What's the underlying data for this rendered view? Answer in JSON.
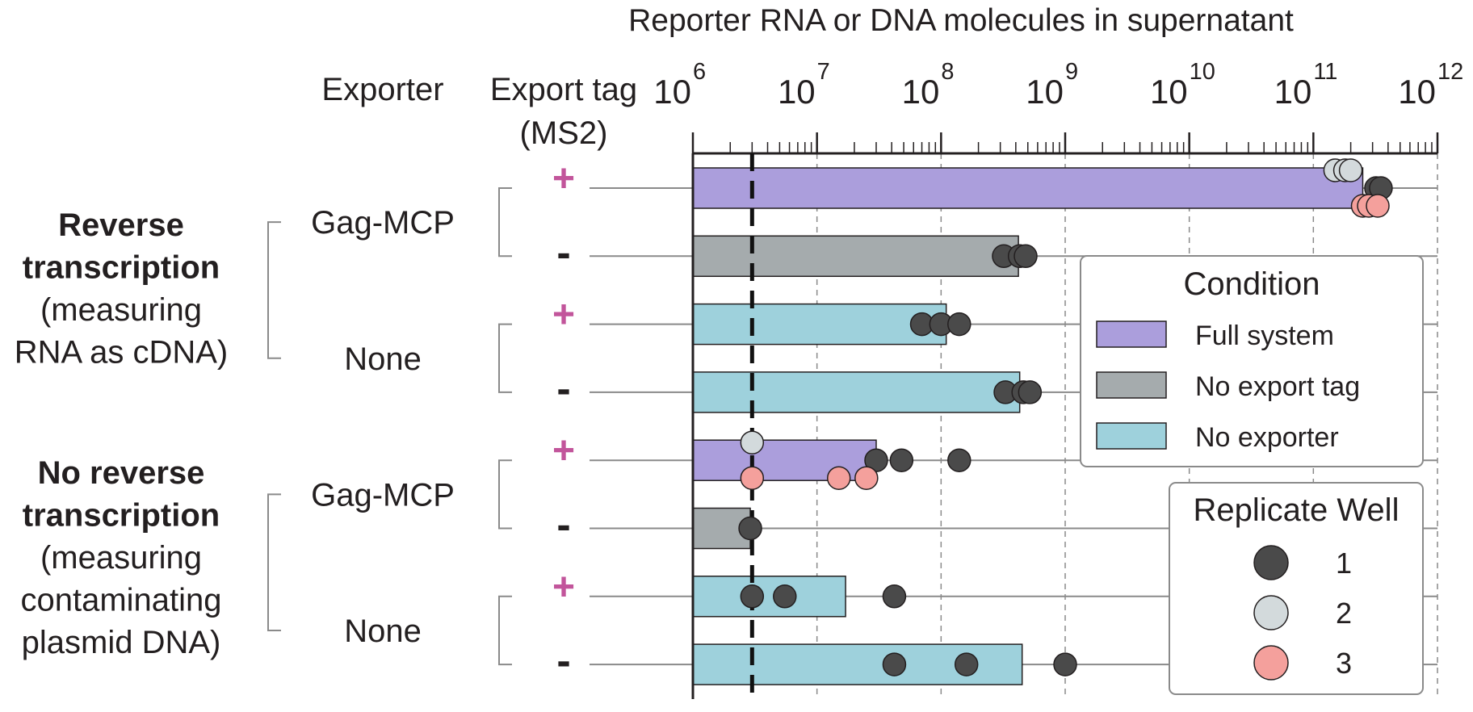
{
  "chart_data": {
    "type": "bar",
    "xscale": "log",
    "xlim": [
      1000000,
      1000000000000
    ],
    "xlabel": "Reporter RNA or DNA molecules in supernatant",
    "x_tick_labels": [
      {
        "base": "10",
        "exp": "6"
      },
      {
        "base": "10",
        "exp": "7"
      },
      {
        "base": "10",
        "exp": "8"
      },
      {
        "base": "10",
        "exp": "9"
      },
      {
        "base": "10",
        "exp": "10"
      },
      {
        "base": "10",
        "exp": "11"
      },
      {
        "base": "10",
        "exp": "12"
      }
    ],
    "detection_limit": 3000000,
    "column_headers": {
      "exporter": "Exporter",
      "export_tag": [
        "Export tag",
        "(MS2)"
      ]
    },
    "groups": [
      {
        "lines": [
          {
            "text": "Reverse",
            "bold": true
          },
          {
            "text": "transcription",
            "bold": true
          },
          {
            "text": "(measuring",
            "bold": false
          },
          {
            "text": "RNA as cDNA)",
            "bold": false
          }
        ]
      },
      {
        "lines": [
          {
            "text": "No reverse",
            "bold": true
          },
          {
            "text": "transcription",
            "bold": true
          },
          {
            "text": "(measuring",
            "bold": false
          },
          {
            "text": "contaminating",
            "bold": false
          },
          {
            "text": "plasmid DNA)",
            "bold": false
          }
        ]
      }
    ],
    "exporters": [
      "Gag-MCP",
      "None",
      "Gag-MCP",
      "None"
    ],
    "tag_symbols": {
      "plus": "+",
      "minus": "-"
    },
    "rows": [
      {
        "group": 0,
        "exporter": 0,
        "tag": "plus",
        "condition": "Full system",
        "value": 250000000000,
        "points": [
          {
            "rep": 2,
            "value": 150000000000
          },
          {
            "rep": 2,
            "value": 180000000000
          },
          {
            "rep": 2,
            "value": 200000000000
          },
          {
            "rep": 1,
            "value": 320000000000
          },
          {
            "rep": 1,
            "value": 350000000000
          },
          {
            "rep": 3,
            "value": 250000000000
          },
          {
            "rep": 3,
            "value": 280000000000
          },
          {
            "rep": 3,
            "value": 330000000000
          }
        ]
      },
      {
        "group": 0,
        "exporter": 0,
        "tag": "minus",
        "condition": "No export tag",
        "value": 420000000,
        "points": [
          {
            "rep": 1,
            "value": 320000000
          },
          {
            "rep": 1,
            "value": 430000000
          },
          {
            "rep": 1,
            "value": 480000000
          }
        ]
      },
      {
        "group": 0,
        "exporter": 1,
        "tag": "plus",
        "condition": "No exporter",
        "value": 110000000,
        "points": [
          {
            "rep": 1,
            "value": 70000000
          },
          {
            "rep": 1,
            "value": 100000000
          },
          {
            "rep": 1,
            "value": 140000000
          }
        ]
      },
      {
        "group": 0,
        "exporter": 1,
        "tag": "minus",
        "condition": "No exporter",
        "value": 430000000,
        "points": [
          {
            "rep": 1,
            "value": 330000000
          },
          {
            "rep": 1,
            "value": 460000000
          },
          {
            "rep": 1,
            "value": 520000000
          }
        ]
      },
      {
        "group": 1,
        "exporter": 2,
        "tag": "plus",
        "condition": "Full system",
        "value": 30000000,
        "points": [
          {
            "rep": 2,
            "value": 3000000
          },
          {
            "rep": 1,
            "value": 30000000
          },
          {
            "rep": 1,
            "value": 48000000
          },
          {
            "rep": 1,
            "value": 140000000
          },
          {
            "rep": 3,
            "value": 3000000
          },
          {
            "rep": 3,
            "value": 15000000
          },
          {
            "rep": 3,
            "value": 25000000
          }
        ]
      },
      {
        "group": 1,
        "exporter": 2,
        "tag": "minus",
        "condition": "No export tag",
        "value": 2900000,
        "points": [
          {
            "rep": 1,
            "value": 2900000
          }
        ]
      },
      {
        "group": 1,
        "exporter": 3,
        "tag": "plus",
        "condition": "No exporter",
        "value": 17000000,
        "points": [
          {
            "rep": 1,
            "value": 3000000
          },
          {
            "rep": 1,
            "value": 5500000
          },
          {
            "rep": 1,
            "value": 42000000
          }
        ]
      },
      {
        "group": 1,
        "exporter": 3,
        "tag": "minus",
        "condition": "No exporter",
        "value": 450000000,
        "points": [
          {
            "rep": 1,
            "value": 42000000
          },
          {
            "rep": 1,
            "value": 160000000
          },
          {
            "rep": 1,
            "value": 1000000000
          }
        ]
      }
    ],
    "legend_condition": {
      "title": "Condition",
      "items": [
        {
          "label": "Full system",
          "color": "#ab9edc"
        },
        {
          "label": "No export tag",
          "color": "#a5abad"
        },
        {
          "label": "No exporter",
          "color": "#9ed1dc"
        }
      ]
    },
    "legend_replicate": {
      "title": "Replicate Well",
      "items": [
        {
          "label": "1",
          "color": "#4a4a4a"
        },
        {
          "label": "2",
          "color": "#d3dadc"
        },
        {
          "label": "3",
          "color": "#f4a09c"
        }
      ]
    },
    "colors": {
      "full_system": "#ab9edc",
      "no_export_tag": "#a5abad",
      "no_exporter": "#9ed1dc",
      "plus_sign": "#c2559b",
      "minus_sign": "#231f20",
      "rep1": "#4a4a4a",
      "rep2": "#d3dadc",
      "rep3": "#f4a09c"
    }
  }
}
